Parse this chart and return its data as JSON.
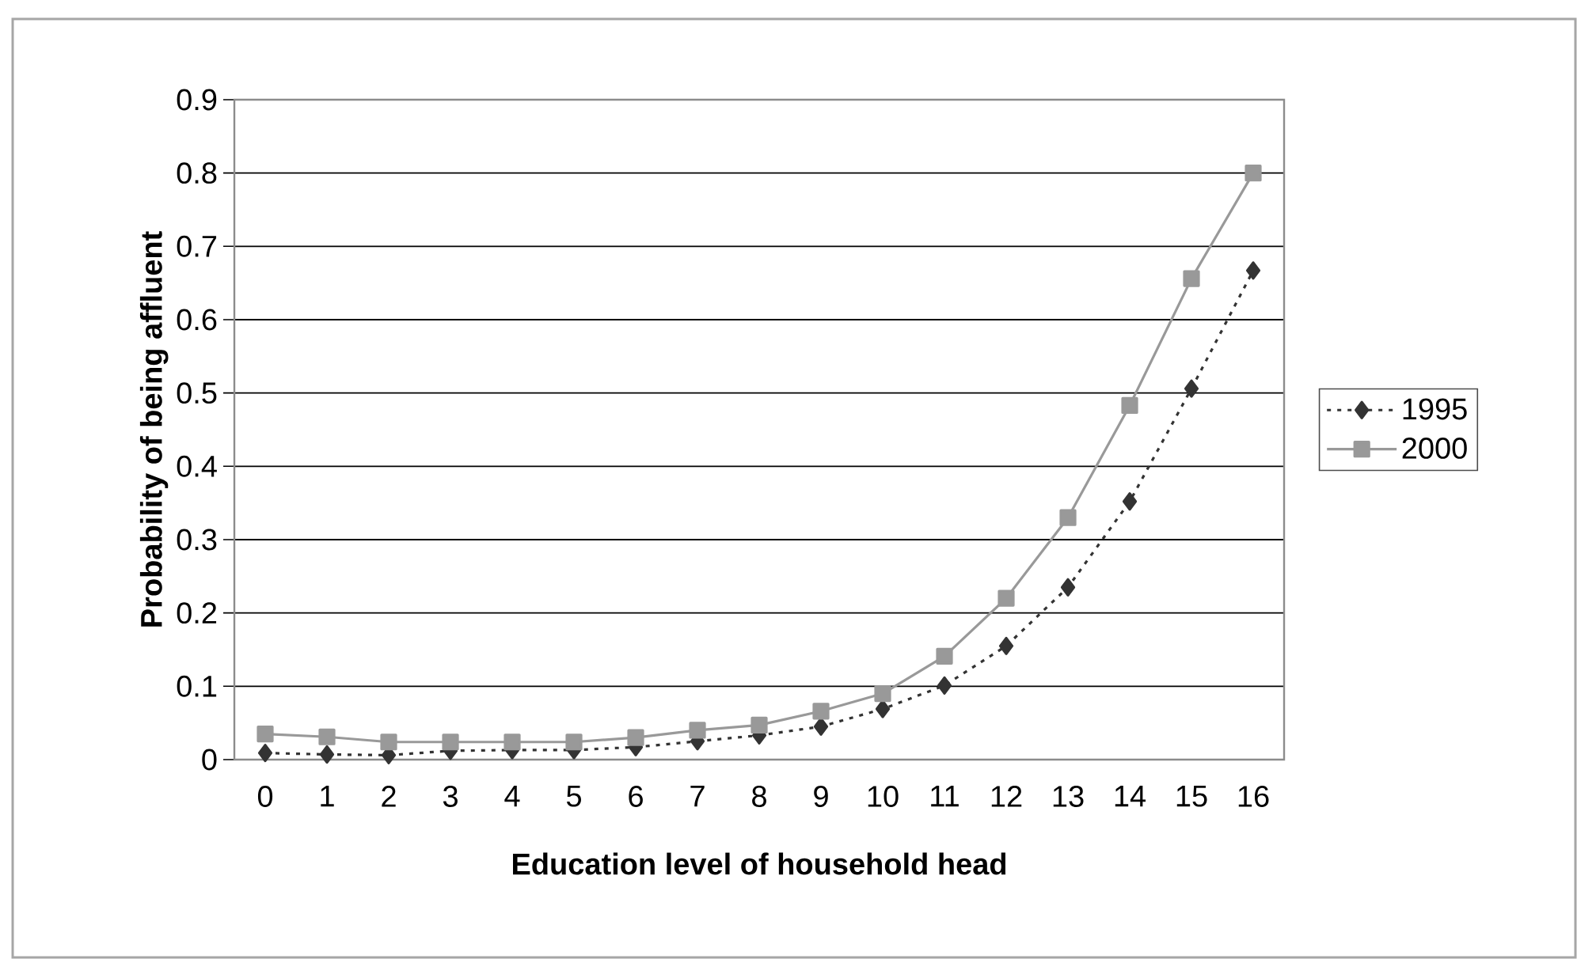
{
  "chart_data": {
    "type": "line",
    "xlabel": "Education level of household head",
    "ylabel": "Probability of being affluent",
    "categories": [
      "0",
      "1",
      "2",
      "3",
      "4",
      "5",
      "6",
      "7",
      "8",
      "9",
      "10",
      "11",
      "12",
      "13",
      "14",
      "15",
      "16"
    ],
    "series": [
      {
        "name": "1995",
        "color": "#333333",
        "marker": "diamond",
        "line_style": "dotted",
        "values": [
          0.009,
          0.007,
          0.006,
          0.012,
          0.013,
          0.013,
          0.017,
          0.025,
          0.033,
          0.045,
          0.069,
          0.101,
          0.155,
          0.235,
          0.352,
          0.506,
          0.667
        ]
      },
      {
        "name": "2000",
        "color": "#999999",
        "marker": "square",
        "line_style": "solid",
        "values": [
          0.035,
          0.031,
          0.024,
          0.024,
          0.024,
          0.024,
          0.03,
          0.04,
          0.047,
          0.066,
          0.09,
          0.141,
          0.22,
          0.33,
          0.483,
          0.656,
          0.8
        ]
      }
    ],
    "ylim": [
      0,
      0.9
    ],
    "yticks": [
      0,
      0.1,
      0.2,
      0.3,
      0.4,
      0.5,
      0.6,
      0.7,
      0.8,
      0.9
    ],
    "grid": "y",
    "legend": "right"
  }
}
